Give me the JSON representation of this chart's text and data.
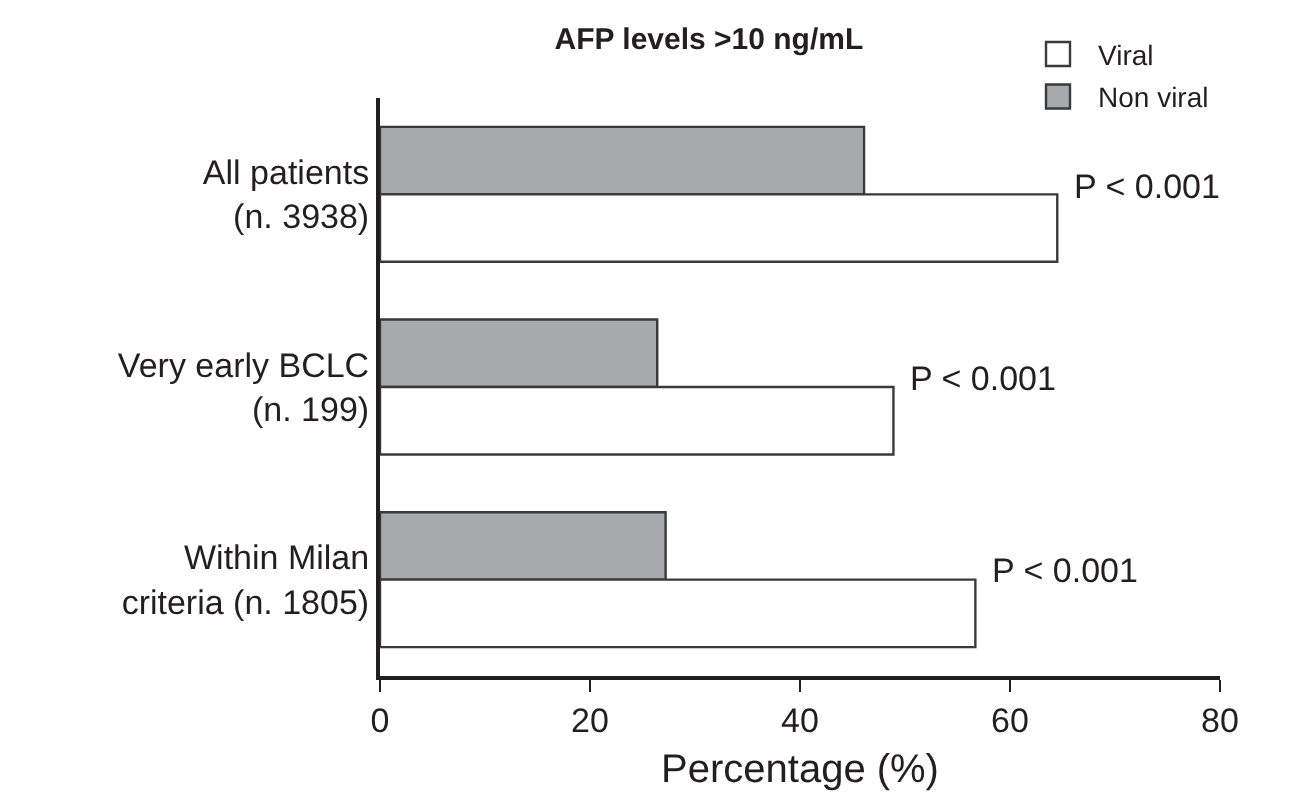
{
  "chart_data": {
    "type": "bar",
    "orientation": "horizontal",
    "title": "AFP levels >10 ng/mL",
    "xlabel": "Percentage (%)",
    "categories": [
      "All patients\n(n. 3938)",
      "Very early BCLC\n(n. 199)",
      "Within Milan\ncriteria (n. 1805)"
    ],
    "series": [
      {
        "name": "Non viral",
        "color": "#a7a9ac",
        "values": [
          46.1,
          26.4,
          27.2
        ]
      },
      {
        "name": "Viral",
        "color": "#ffffff",
        "values": [
          64.5,
          48.9,
          56.7
        ]
      }
    ],
    "annotations": [
      {
        "text": "P < 0.001",
        "x": 64.5,
        "y": "All patients\n(n. 3938)"
      },
      {
        "text": "P < 0.001",
        "x": 48.9,
        "y": "Very early BCLC\n(n. 199)"
      },
      {
        "text": "P < 0.001",
        "x": 56.7,
        "y": "Within Milan\ncriteria (n. 1805)"
      }
    ],
    "xlim": [
      0,
      80
    ],
    "xticks": [
      0,
      20,
      40,
      60,
      80
    ],
    "legend": "top right"
  }
}
